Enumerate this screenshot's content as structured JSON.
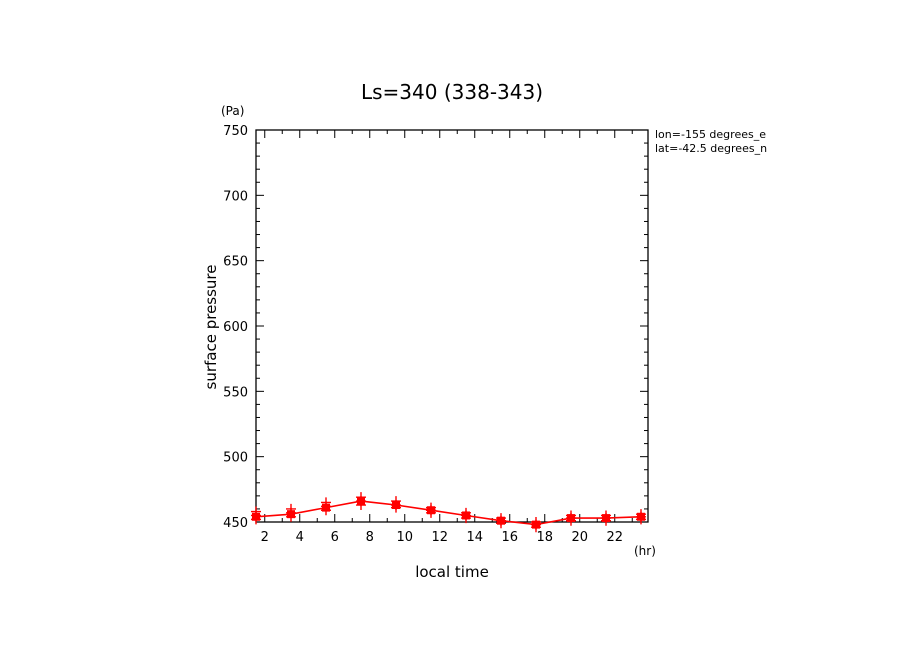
{
  "chart_data": {
    "type": "line",
    "title": "Ls=340 (338-343)",
    "xlabel": "local time",
    "ylabel": "surface pressure",
    "x_unit": "(hr)",
    "y_unit": "(Pa)",
    "xlim": [
      1.5,
      23.9
    ],
    "ylim": [
      450,
      750
    ],
    "x_ticks": [
      2,
      4,
      6,
      8,
      10,
      12,
      14,
      16,
      18,
      20,
      22
    ],
    "y_ticks": [
      450,
      500,
      550,
      600,
      650,
      700,
      750
    ],
    "annotations": [
      "lon=-155 degrees_e",
      "lat=-42.5 degrees_n"
    ],
    "grid": false,
    "line_color": "#ff0000",
    "series": [
      {
        "x": [
          1.5,
          3.5,
          5.5,
          7.5,
          9.5,
          11.5,
          13.5,
          15.5,
          17.5,
          19.5,
          21.5,
          23.5
        ],
        "y": [
          454,
          456,
          461,
          466,
          463,
          459,
          455,
          451,
          448,
          453,
          453,
          454
        ],
        "points": [
          {
            "x": 1.5,
            "y": [
              452,
              455,
              458
            ]
          },
          {
            "x": 3.5,
            "y": [
              454,
              457,
              460
            ]
          },
          {
            "x": 5.5,
            "y": [
              459,
              462,
              465
            ]
          },
          {
            "x": 7.5,
            "y": [
              463,
              466,
              469
            ]
          },
          {
            "x": 9.5,
            "y": [
              461,
              463,
              466
            ]
          },
          {
            "x": 11.5,
            "y": [
              457,
              459,
              461
            ]
          },
          {
            "x": 13.5,
            "y": [
              453,
              455,
              457
            ]
          },
          {
            "x": 15.5,
            "y": [
              449,
              451,
              453
            ]
          },
          {
            "x": 17.5,
            "y": [
              446,
              448,
              450
            ]
          },
          {
            "x": 19.5,
            "y": [
              451,
              453,
              455
            ]
          },
          {
            "x": 21.5,
            "y": [
              451,
              453,
              455
            ]
          },
          {
            "x": 23.5,
            "y": [
              452,
              454,
              456
            ]
          }
        ]
      }
    ]
  }
}
